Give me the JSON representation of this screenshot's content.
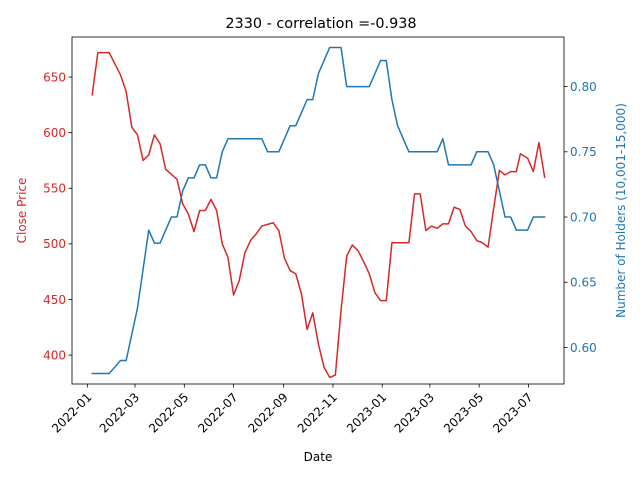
{
  "chart_data": {
    "type": "line",
    "title": "2330 - correlation =-0.938",
    "xlabel": "Date",
    "ylabel_left": "Close Price",
    "ylabel_right": "Number of Holders (10,001-15,000)",
    "x_ticks": [
      "2022-01",
      "2022-03",
      "2022-05",
      "2022-07",
      "2022-09",
      "2022-11",
      "2023-01",
      "2023-03",
      "2023-05",
      "2023-07"
    ],
    "y_left_ticks": [
      400,
      450,
      500,
      550,
      600,
      650
    ],
    "y_right_ticks": [
      "0.60",
      "0.65",
      "0.70",
      "0.75",
      "0.80"
    ],
    "xlim": [
      "2021-12-13",
      "2023-08-14"
    ],
    "ylim_left": [
      374,
      686
    ],
    "ylim_right": [
      0.572,
      0.838
    ],
    "grid": false,
    "colors": {
      "left": "#d62728",
      "right": "#1f77b4"
    },
    "series": [
      {
        "name": "Close Price",
        "axis": "left",
        "points": [
          [
            "2022-01-07",
            634
          ],
          [
            "2022-01-14",
            672
          ],
          [
            "2022-01-21",
            672
          ],
          [
            "2022-01-28",
            672
          ],
          [
            "2022-02-11",
            652
          ],
          [
            "2022-02-18",
            637
          ],
          [
            "2022-02-25",
            605
          ],
          [
            "2022-03-04",
            598
          ],
          [
            "2022-03-11",
            575
          ],
          [
            "2022-03-18",
            580
          ],
          [
            "2022-03-25",
            598
          ],
          [
            "2022-04-01",
            590
          ],
          [
            "2022-04-08",
            567
          ],
          [
            "2022-04-22",
            558
          ],
          [
            "2022-04-29",
            536
          ],
          [
            "2022-05-06",
            527
          ],
          [
            "2022-05-13",
            511
          ],
          [
            "2022-05-20",
            530
          ],
          [
            "2022-05-27",
            530
          ],
          [
            "2022-06-03",
            540
          ],
          [
            "2022-06-10",
            530
          ],
          [
            "2022-06-17",
            500
          ],
          [
            "2022-06-24",
            488
          ],
          [
            "2022-07-01",
            454
          ],
          [
            "2022-07-08",
            467
          ],
          [
            "2022-07-15",
            492
          ],
          [
            "2022-07-22",
            503
          ],
          [
            "2022-07-29",
            509
          ],
          [
            "2022-08-05",
            516
          ],
          [
            "2022-08-19",
            519
          ],
          [
            "2022-08-26",
            512
          ],
          [
            "2022-09-02",
            487
          ],
          [
            "2022-09-09",
            476
          ],
          [
            "2022-09-16",
            473
          ],
          [
            "2022-09-23",
            455
          ],
          [
            "2022-09-30",
            423
          ],
          [
            "2022-10-07",
            438
          ],
          [
            "2022-10-14",
            410
          ],
          [
            "2022-10-21",
            389
          ],
          [
            "2022-10-28",
            380
          ],
          [
            "2022-11-04",
            382
          ],
          [
            "2022-11-11",
            440
          ],
          [
            "2022-11-18",
            489
          ],
          [
            "2022-11-25",
            499
          ],
          [
            "2022-12-02",
            494
          ],
          [
            "2022-12-09",
            484
          ],
          [
            "2022-12-16",
            473
          ],
          [
            "2022-12-23",
            456
          ],
          [
            "2022-12-30",
            449
          ],
          [
            "2023-01-06",
            449
          ],
          [
            "2023-01-13",
            501
          ],
          [
            "2023-01-20",
            501
          ],
          [
            "2023-02-03",
            501
          ],
          [
            "2023-02-10",
            545
          ],
          [
            "2023-02-17",
            545
          ],
          [
            "2023-02-24",
            512
          ],
          [
            "2023-03-03",
            516
          ],
          [
            "2023-03-10",
            514
          ],
          [
            "2023-03-17",
            518
          ],
          [
            "2023-03-24",
            518
          ],
          [
            "2023-03-31",
            533
          ],
          [
            "2023-04-07",
            531
          ],
          [
            "2023-04-14",
            516
          ],
          [
            "2023-04-21",
            511
          ],
          [
            "2023-04-28",
            503
          ],
          [
            "2023-05-05",
            501
          ],
          [
            "2023-05-12",
            497
          ],
          [
            "2023-05-19",
            532
          ],
          [
            "2023-05-26",
            566
          ],
          [
            "2023-06-02",
            562
          ],
          [
            "2023-06-09",
            565
          ],
          [
            "2023-06-16",
            565
          ],
          [
            "2023-06-21",
            581
          ],
          [
            "2023-06-30",
            577
          ],
          [
            "2023-07-07",
            565
          ],
          [
            "2023-07-14",
            591
          ],
          [
            "2023-07-21",
            560
          ]
        ]
      },
      {
        "name": "Number of Holders (10,001-15,000)",
        "axis": "right",
        "points": [
          [
            "2022-01-07",
            0.58
          ],
          [
            "2022-01-14",
            0.58
          ],
          [
            "2022-01-21",
            0.58
          ],
          [
            "2022-01-28",
            0.58
          ],
          [
            "2022-02-11",
            0.59
          ],
          [
            "2022-02-18",
            0.59
          ],
          [
            "2022-02-25",
            0.61
          ],
          [
            "2022-03-04",
            0.63
          ],
          [
            "2022-03-11",
            0.66
          ],
          [
            "2022-03-18",
            0.69
          ],
          [
            "2022-03-25",
            0.68
          ],
          [
            "2022-04-01",
            0.68
          ],
          [
            "2022-04-08",
            0.69
          ],
          [
            "2022-04-15",
            0.7
          ],
          [
            "2022-04-22",
            0.7
          ],
          [
            "2022-04-29",
            0.72
          ],
          [
            "2022-05-06",
            0.73
          ],
          [
            "2022-05-13",
            0.73
          ],
          [
            "2022-05-20",
            0.74
          ],
          [
            "2022-05-27",
            0.74
          ],
          [
            "2022-06-03",
            0.73
          ],
          [
            "2022-06-10",
            0.73
          ],
          [
            "2022-06-17",
            0.75
          ],
          [
            "2022-06-24",
            0.76
          ],
          [
            "2022-07-01",
            0.76
          ],
          [
            "2022-07-08",
            0.76
          ],
          [
            "2022-07-15",
            0.76
          ],
          [
            "2022-07-22",
            0.76
          ],
          [
            "2022-07-29",
            0.76
          ],
          [
            "2022-08-05",
            0.76
          ],
          [
            "2022-08-12",
            0.75
          ],
          [
            "2022-08-19",
            0.75
          ],
          [
            "2022-08-26",
            0.75
          ],
          [
            "2022-09-02",
            0.76
          ],
          [
            "2022-09-09",
            0.77
          ],
          [
            "2022-09-16",
            0.77
          ],
          [
            "2022-09-23",
            0.78
          ],
          [
            "2022-09-30",
            0.79
          ],
          [
            "2022-10-07",
            0.79
          ],
          [
            "2022-10-14",
            0.81
          ],
          [
            "2022-10-21",
            0.82
          ],
          [
            "2022-10-28",
            0.83
          ],
          [
            "2022-11-04",
            0.83
          ],
          [
            "2022-11-11",
            0.83
          ],
          [
            "2022-11-18",
            0.8
          ],
          [
            "2022-11-25",
            0.8
          ],
          [
            "2022-12-02",
            0.8
          ],
          [
            "2022-12-09",
            0.8
          ],
          [
            "2022-12-16",
            0.8
          ],
          [
            "2022-12-23",
            0.81
          ],
          [
            "2022-12-30",
            0.82
          ],
          [
            "2023-01-06",
            0.82
          ],
          [
            "2023-01-13",
            0.79
          ],
          [
            "2023-01-20",
            0.77
          ],
          [
            "2023-02-03",
            0.75
          ],
          [
            "2023-02-10",
            0.75
          ],
          [
            "2023-02-17",
            0.75
          ],
          [
            "2023-02-24",
            0.75
          ],
          [
            "2023-03-03",
            0.75
          ],
          [
            "2023-03-10",
            0.75
          ],
          [
            "2023-03-17",
            0.76
          ],
          [
            "2023-03-24",
            0.74
          ],
          [
            "2023-03-31",
            0.74
          ],
          [
            "2023-04-07",
            0.74
          ],
          [
            "2023-04-14",
            0.74
          ],
          [
            "2023-04-21",
            0.74
          ],
          [
            "2023-04-28",
            0.75
          ],
          [
            "2023-05-05",
            0.75
          ],
          [
            "2023-05-12",
            0.75
          ],
          [
            "2023-05-19",
            0.74
          ],
          [
            "2023-05-26",
            0.72
          ],
          [
            "2023-06-02",
            0.7
          ],
          [
            "2023-06-09",
            0.7
          ],
          [
            "2023-06-16",
            0.69
          ],
          [
            "2023-06-21",
            0.69
          ],
          [
            "2023-06-30",
            0.69
          ],
          [
            "2023-07-07",
            0.7
          ],
          [
            "2023-07-14",
            0.7
          ],
          [
            "2023-07-21",
            0.7
          ]
        ]
      }
    ]
  }
}
